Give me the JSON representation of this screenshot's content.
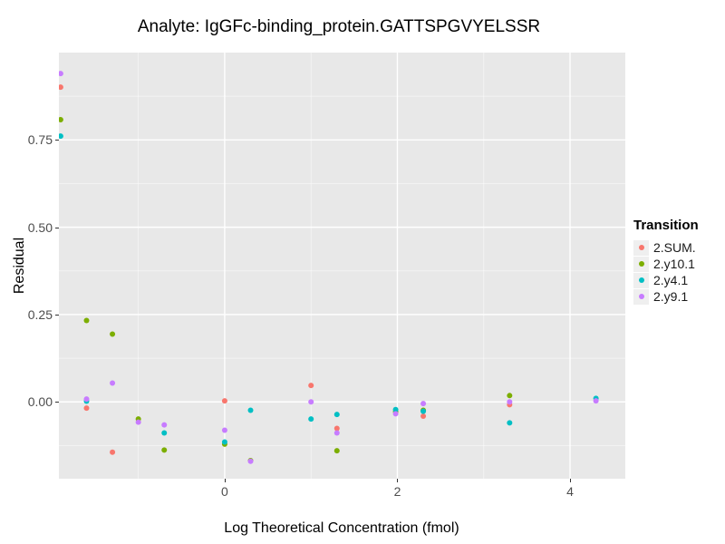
{
  "chart_data": {
    "type": "scatter",
    "title": "Analyte: IgGFc-binding_protein.GATTSPGVYELSSR",
    "xlabel": "Log Theoretical Concentration (fmol)",
    "ylabel": "Residual",
    "xlim": [
      -1.92,
      4.64
    ],
    "ylim": [
      -0.22,
      1.0
    ],
    "x_ticks": [
      {
        "v": 0,
        "label": "0"
      },
      {
        "v": 2,
        "label": "2"
      },
      {
        "v": 4,
        "label": "4"
      }
    ],
    "y_ticks": [
      {
        "v": 0,
        "label": "0.00"
      },
      {
        "v": 0.25,
        "label": "0.25"
      },
      {
        "v": 0.5,
        "label": "0.50"
      },
      {
        "v": 0.75,
        "label": "0.75"
      }
    ],
    "x_minor_ticks": [
      -1,
      1,
      3
    ],
    "y_minor_ticks": [
      -0.125,
      0.125,
      0.375,
      0.625,
      0.875
    ],
    "grid": true,
    "legend_position": "right",
    "legend_title": "Transition",
    "panel_bg": "#e8e8e8",
    "grid_major_color": "#ffffff",
    "grid_minor_color": "#ffffff",
    "tick_color": "#333333",
    "tick_label_color": "#4d4d4d",
    "point_radius": 3,
    "series": [
      {
        "name": "2.SUM.",
        "color": "#F8766D",
        "points": [
          [
            -1.9,
            0.901
          ],
          [
            -1.6,
            -0.018
          ],
          [
            -1.3,
            -0.144
          ],
          [
            0.0,
            0.003
          ],
          [
            1.0,
            0.047
          ],
          [
            1.3,
            -0.076
          ],
          [
            2.3,
            -0.041
          ],
          [
            3.3,
            -0.008
          ]
        ]
      },
      {
        "name": "2.y10.1",
        "color": "#7CAE00",
        "points": [
          [
            -1.9,
            0.808
          ],
          [
            -1.6,
            0.233
          ],
          [
            -1.3,
            0.194
          ],
          [
            -1.0,
            -0.049
          ],
          [
            -0.7,
            -0.138
          ],
          [
            0.0,
            -0.121
          ],
          [
            0.3,
            -0.168
          ],
          [
            1.3,
            -0.14
          ],
          [
            1.98,
            -0.028
          ],
          [
            2.3,
            -0.024
          ],
          [
            3.3,
            0.018
          ]
        ]
      },
      {
        "name": "2.y4.1",
        "color": "#00BFC4",
        "points": [
          [
            -1.9,
            0.761
          ],
          [
            -1.6,
            0.002
          ],
          [
            -0.7,
            -0.089
          ],
          [
            0.0,
            -0.115
          ],
          [
            0.3,
            -0.024
          ],
          [
            1.0,
            -0.049
          ],
          [
            1.3,
            -0.036
          ],
          [
            1.98,
            -0.022
          ],
          [
            2.3,
            -0.027
          ],
          [
            3.3,
            -0.06
          ],
          [
            4.3,
            0.01
          ]
        ]
      },
      {
        "name": "2.y9.1",
        "color": "#C77CFF",
        "points": [
          [
            -1.9,
            0.94
          ],
          [
            -1.6,
            0.008
          ],
          [
            -1.3,
            0.054
          ],
          [
            -1.0,
            -0.058
          ],
          [
            -0.7,
            -0.066
          ],
          [
            0.0,
            -0.081
          ],
          [
            0.3,
            -0.17
          ],
          [
            1.0,
            0.0
          ],
          [
            1.3,
            -0.089
          ],
          [
            1.98,
            -0.034
          ],
          [
            2.3,
            -0.005
          ],
          [
            3.3,
            0.0
          ],
          [
            4.3,
            0.003
          ]
        ]
      }
    ]
  }
}
